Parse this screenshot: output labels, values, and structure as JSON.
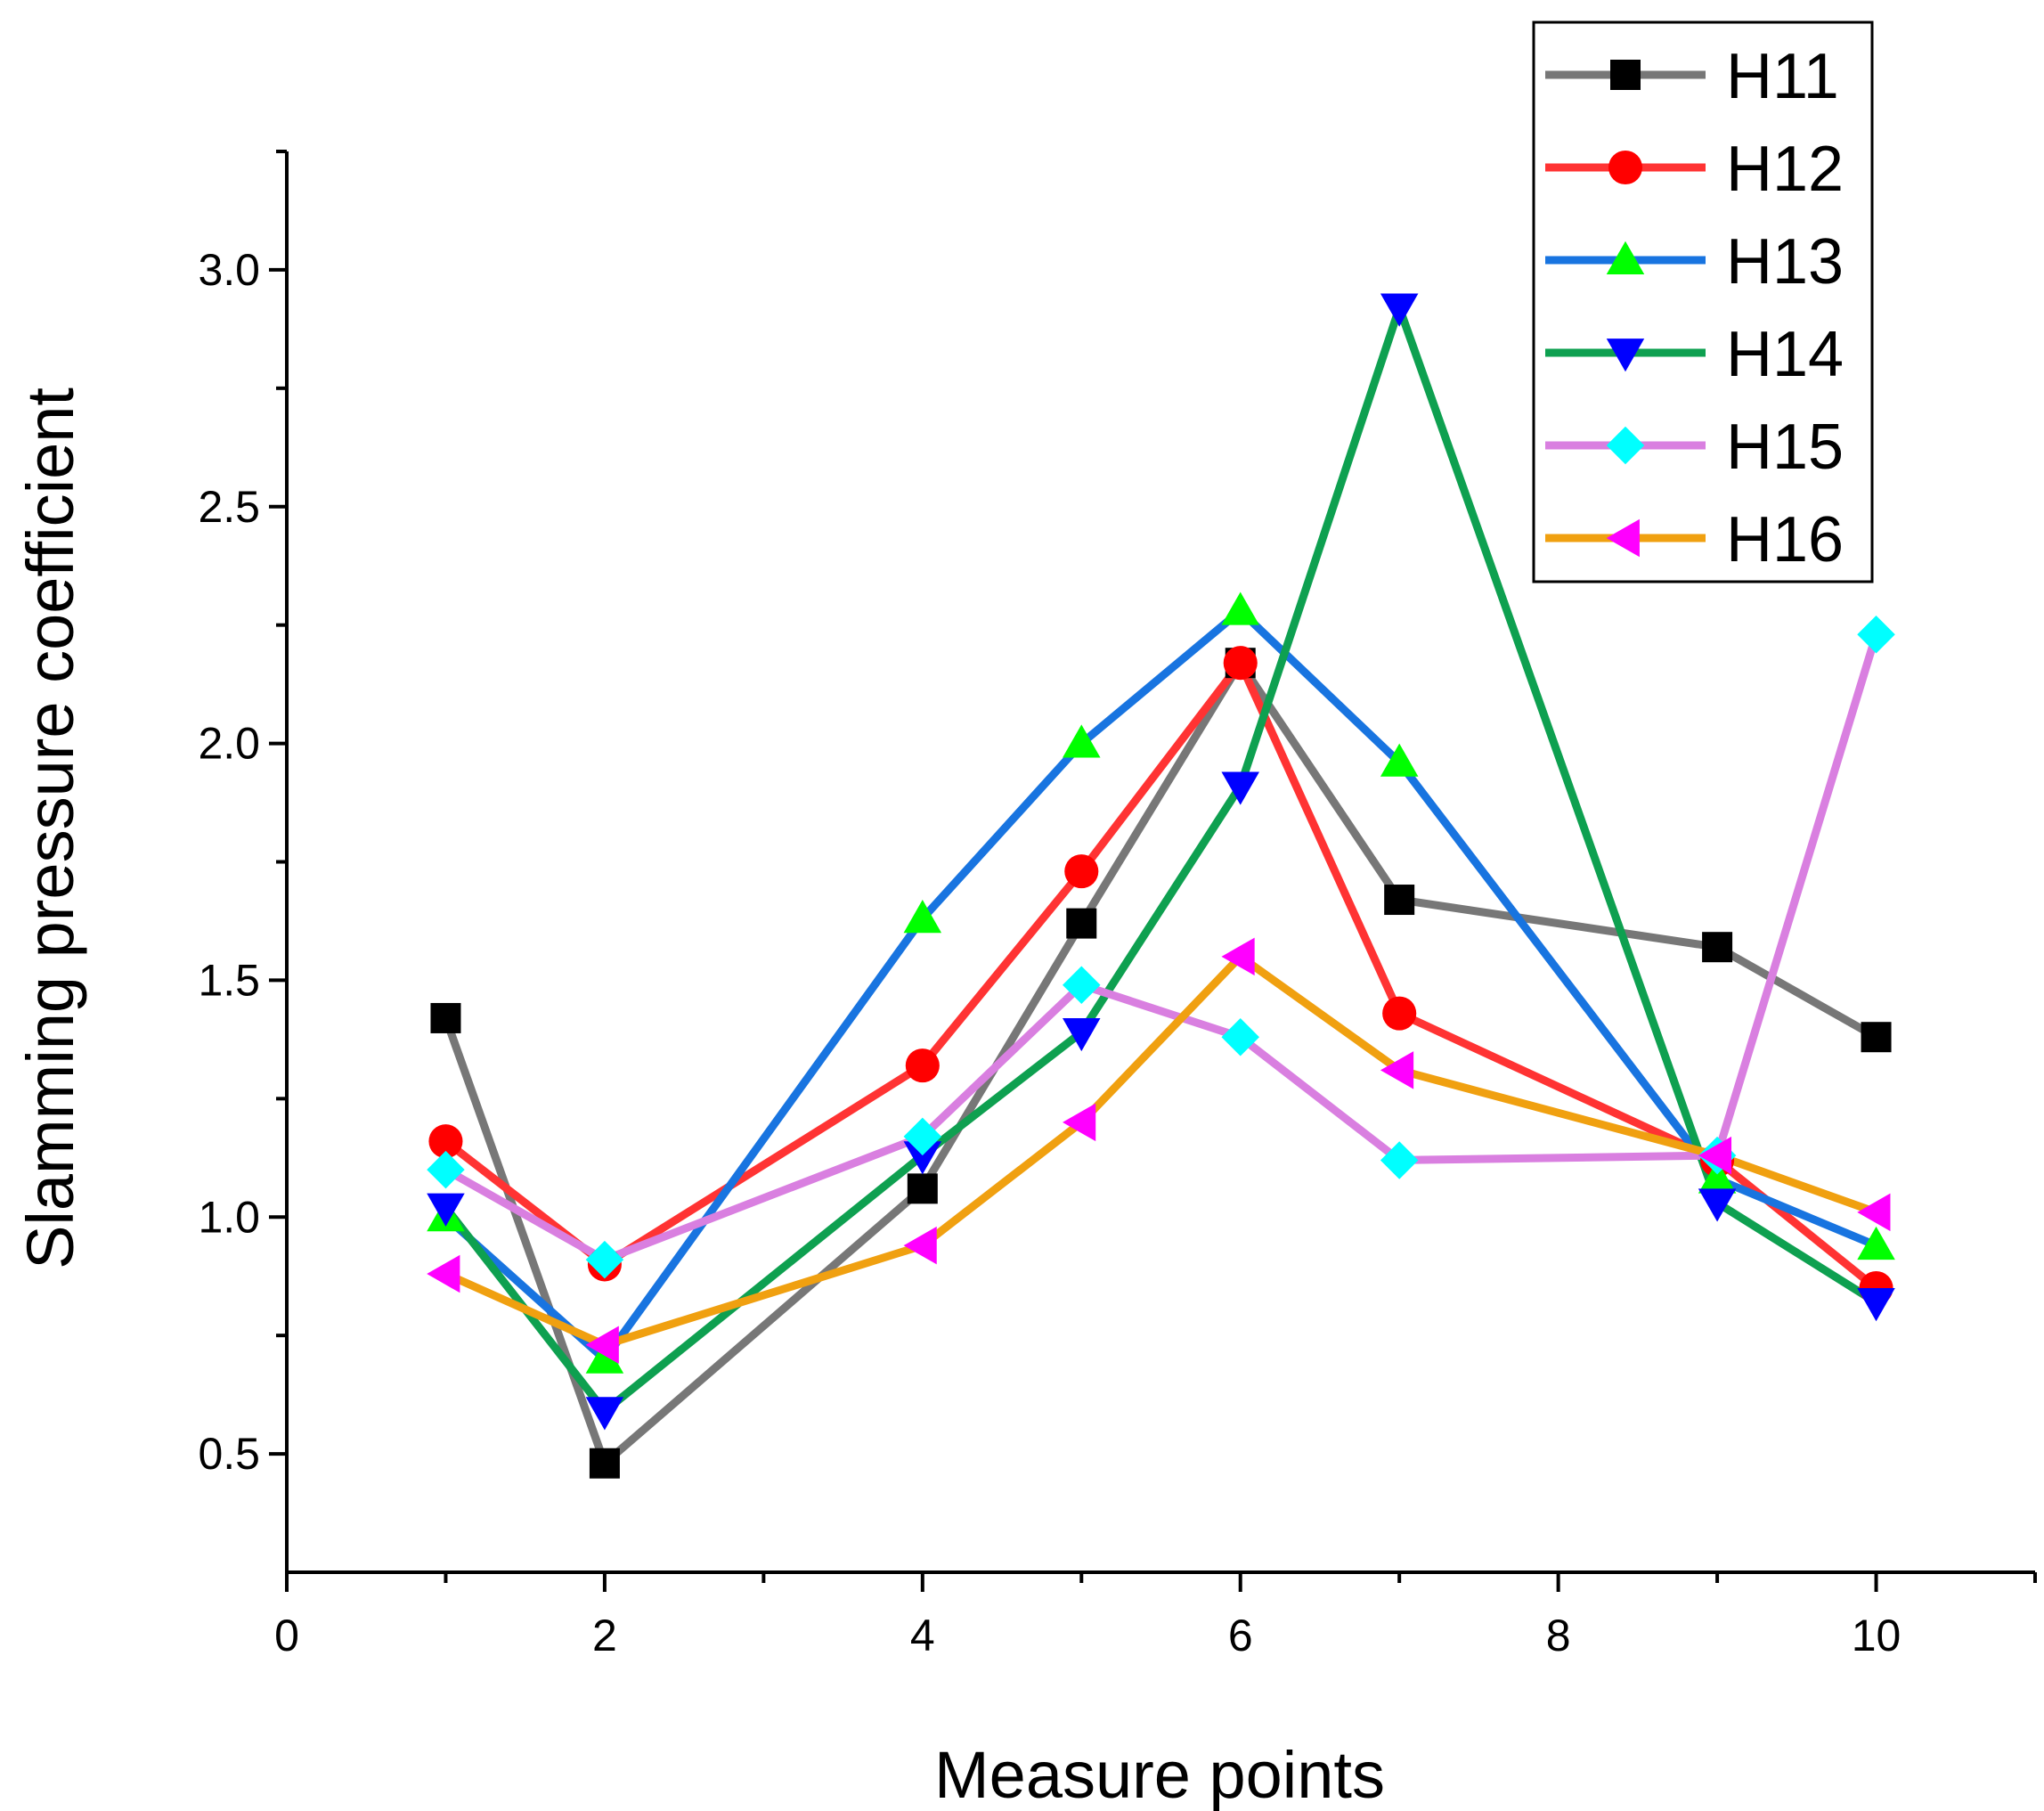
{
  "chart_data": {
    "type": "line",
    "xlabel": "Measure points",
    "ylabel": "Slamming pressure coefficient",
    "xlim": [
      0,
      11
    ],
    "ylim": [
      0.25,
      3.25
    ],
    "xticks": [
      0,
      2,
      4,
      6,
      8,
      10
    ],
    "xticks_minor": [
      1,
      3,
      5,
      7,
      9,
      11
    ],
    "yticks": [
      0.5,
      1.0,
      1.5,
      2.0,
      2.5,
      3.0
    ],
    "ytick_labels": [
      "0.5",
      "1.0",
      "1.5",
      "2.0",
      "2.5",
      "3.0"
    ],
    "grid": false,
    "legend_position": "top-right",
    "x": [
      1,
      2,
      4,
      5,
      6,
      7,
      9,
      10
    ],
    "series": [
      {
        "name": "H11",
        "line_color": "#777777",
        "marker_color": "#000000",
        "marker": "square",
        "values": [
          1.42,
          0.48,
          1.06,
          1.62,
          2.17,
          1.67,
          1.57,
          1.38
        ]
      },
      {
        "name": "H12",
        "line_color": "#FF3333",
        "marker_color": "#FF0000",
        "marker": "circle",
        "values": [
          1.16,
          0.9,
          1.32,
          1.73,
          2.17,
          1.43,
          1.12,
          0.85
        ]
      },
      {
        "name": "H13",
        "line_color": "#1874E0",
        "marker_color": "#00FF00",
        "marker": "triangle-up",
        "values": [
          1.0,
          0.7,
          1.63,
          2.0,
          2.28,
          1.96,
          1.08,
          0.94
        ]
      },
      {
        "name": "H14",
        "line_color": "#0EA050",
        "marker_color": "#0000FF",
        "marker": "triangle-down",
        "values": [
          1.02,
          0.59,
          1.13,
          1.39,
          1.91,
          2.92,
          1.03,
          0.82
        ]
      },
      {
        "name": "H15",
        "line_color": "#D97FE0",
        "marker_color": "#00FFFF",
        "marker": "diamond",
        "values": [
          1.1,
          0.91,
          1.17,
          1.49,
          1.38,
          1.12,
          1.13,
          2.23
        ]
      },
      {
        "name": "H16",
        "line_color": "#F0A010",
        "marker_color": "#FF00FF",
        "marker": "triangle-left",
        "values": [
          0.88,
          0.73,
          0.94,
          1.2,
          1.55,
          1.31,
          1.13,
          1.01
        ]
      }
    ]
  }
}
